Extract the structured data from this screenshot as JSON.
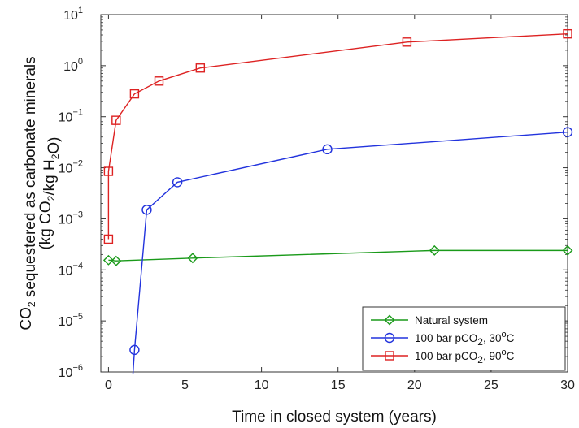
{
  "chart_data": {
    "type": "line",
    "xlabel": "Time in closed system (years)",
    "ylabel_line1": "CO₂ sequestered as carbonate minerals",
    "ylabel_line2": "(kg CO₂/kg H₂O)",
    "xlim": [
      -0.5,
      30
    ],
    "ylim": [
      1e-06,
      10
    ],
    "yscale": "log",
    "x_ticks": [
      0,
      5,
      10,
      15,
      20,
      25,
      30
    ],
    "x_tick_labels": [
      "0",
      "5",
      "10",
      "15",
      "20",
      "25",
      "30"
    ],
    "y_ticks": [
      1e-06,
      1e-05,
      0.0001,
      0.001,
      0.01,
      0.1,
      1,
      10
    ],
    "y_tick_labels": [
      {
        "base": "10",
        "exp": "−6"
      },
      {
        "base": "10",
        "exp": "−5"
      },
      {
        "base": "10",
        "exp": "−4"
      },
      {
        "base": "10",
        "exp": "−3"
      },
      {
        "base": "10",
        "exp": "−2"
      },
      {
        "base": "10",
        "exp": "−1"
      },
      {
        "base": "10",
        "exp": "0"
      },
      {
        "base": "10",
        "exp": "1"
      }
    ],
    "grid": false,
    "legend_position": "bottom-right",
    "series": [
      {
        "name": "Natural system",
        "legend_parts": [
          "Natural system"
        ],
        "color": "#1a9a1a",
        "marker": "diamond",
        "x": [
          0,
          0.5,
          5.5,
          21.3,
          30
        ],
        "y": [
          0.000155,
          0.00015,
          0.00017,
          0.00024,
          0.00024
        ]
      },
      {
        "name": "100 bar pCO₂, 30°C",
        "legend_parts": [
          "100 bar pCO",
          "2",
          ", 30",
          "o",
          "C"
        ],
        "color": "#2233dd",
        "marker": "circle",
        "x": [
          1.7,
          2.5,
          4.5,
          14.3,
          30
        ],
        "y": [
          2.7e-06,
          0.0015,
          0.0052,
          0.023,
          0.05
        ]
      },
      {
        "name": "100 bar pCO₂, 90°C",
        "legend_parts": [
          "100 bar pCO",
          "2",
          ", 90",
          "o",
          "C"
        ],
        "color": "#dd2222",
        "marker": "square",
        "x": [
          0,
          0,
          0.5,
          1.7,
          3.3,
          6,
          19.5,
          30
        ],
        "y": [
          0.0004,
          0.0085,
          0.085,
          0.28,
          0.5,
          0.9,
          2.9,
          4.2
        ]
      }
    ]
  }
}
